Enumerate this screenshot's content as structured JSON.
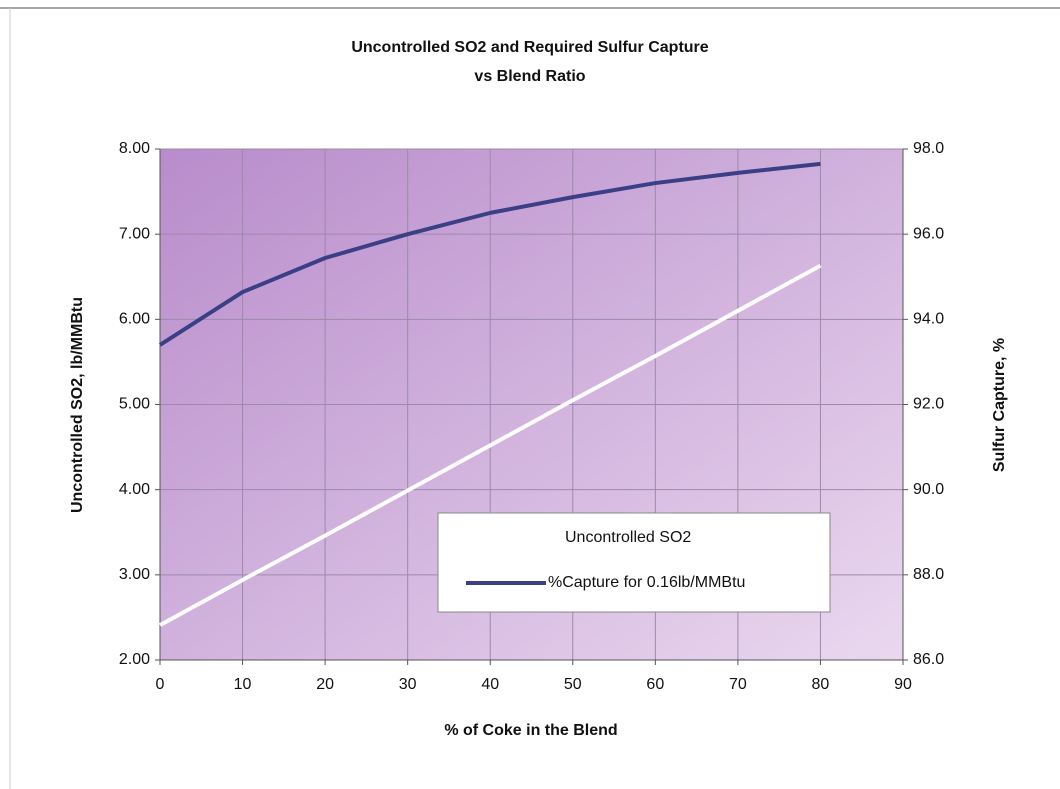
{
  "chart_data": {
    "type": "line",
    "title": "Uncontrolled SO2 and Required Sulfur Capture",
    "subtitle": "vs Blend Ratio",
    "x_label": "% of Coke in the Blend",
    "y_label": "Uncontrolled SO2, lb/MMBtu",
    "y2_label": "Sulfur Capture, %",
    "x": [
      0,
      10,
      20,
      30,
      40,
      50,
      60,
      70,
      80
    ],
    "series": [
      {
        "name": "Uncontrolled SO2",
        "color": "#ffffff",
        "values": [
          2.41,
          2.94,
          3.46,
          3.99,
          4.52,
          5.05,
          5.57,
          6.1,
          6.63
        ]
      },
      {
        "name": "%Capture for 0.16lb/MMBtu",
        "color": "#3b3f86",
        "axis": "y2",
        "values": [
          93.4,
          94.64,
          95.44,
          96.0,
          96.5,
          96.87,
          97.2,
          97.44,
          97.65
        ]
      }
    ],
    "xlim": [
      0,
      90
    ],
    "xticks": [
      0,
      10,
      20,
      30,
      40,
      50,
      60,
      70,
      80,
      90
    ],
    "ylim": [
      2,
      8
    ],
    "yticks": [
      {
        "value": 2,
        "label": "2.00"
      },
      {
        "value": 3,
        "label": "3.00"
      },
      {
        "value": 4,
        "label": "4.00"
      },
      {
        "value": 5,
        "label": "5.00"
      },
      {
        "value": 6,
        "label": "6.00"
      },
      {
        "value": 7,
        "label": "7.00"
      },
      {
        "value": 8,
        "label": "8.00"
      }
    ],
    "y2lim": [
      86,
      98
    ],
    "y2ticks": [
      {
        "value": 86,
        "label": "86.0"
      },
      {
        "value": 88,
        "label": "88.0"
      },
      {
        "value": 90,
        "label": "90.0"
      },
      {
        "value": 92,
        "label": "92.0"
      },
      {
        "value": 94,
        "label": "94.0"
      },
      {
        "value": 96,
        "label": "96.0"
      },
      {
        "value": 98,
        "label": "98.0"
      }
    ],
    "grid": true,
    "legend": "lower right"
  }
}
